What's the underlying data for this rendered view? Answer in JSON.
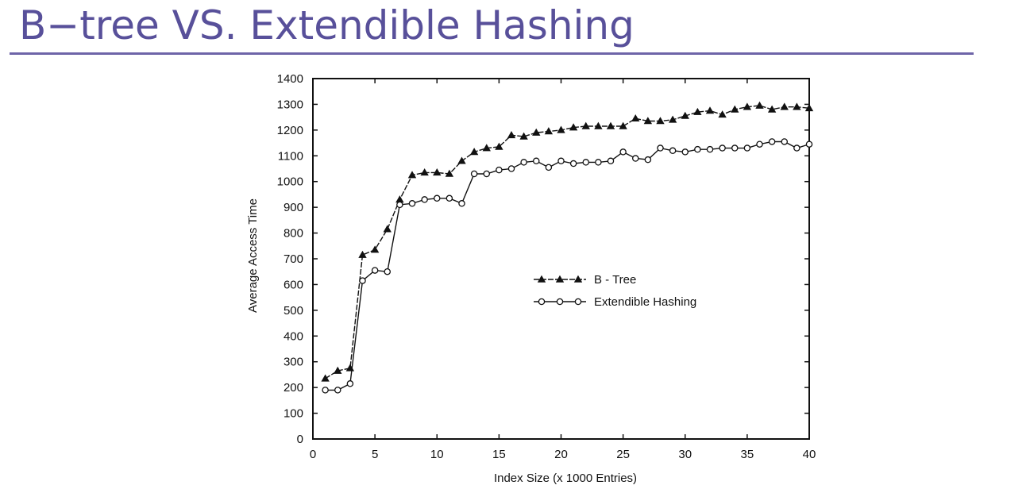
{
  "slide": {
    "title": "B−tree VS. Extendible Hashing"
  },
  "colors": {
    "title": "#58509a",
    "rule": "#6e64a8",
    "ink": "#111111"
  },
  "chart_data": {
    "type": "line",
    "xlabel": "Index Size (x 1000 Entries)",
    "ylabel": "Average Access Time",
    "xlim": [
      0,
      40
    ],
    "ylim": [
      0,
      1400
    ],
    "xticks": [
      0,
      5,
      10,
      15,
      20,
      25,
      30,
      35,
      40
    ],
    "yticks": [
      0,
      100,
      200,
      300,
      400,
      500,
      600,
      700,
      800,
      900,
      1000,
      1100,
      1200,
      1300,
      1400
    ],
    "grid": false,
    "legend_position": "center-right",
    "x": [
      1,
      2,
      3,
      4,
      5,
      6,
      7,
      8,
      9,
      10,
      11,
      12,
      13,
      14,
      15,
      16,
      17,
      18,
      19,
      20,
      21,
      22,
      23,
      24,
      25,
      26,
      27,
      28,
      29,
      30,
      31,
      32,
      33,
      34,
      35,
      36,
      37,
      38,
      39,
      40
    ],
    "series": [
      {
        "name": "B - Tree",
        "marker": "filled-triangle",
        "line": "dashed",
        "values": [
          235,
          265,
          275,
          715,
          735,
          815,
          930,
          1025,
          1035,
          1035,
          1030,
          1080,
          1115,
          1130,
          1135,
          1180,
          1175,
          1190,
          1195,
          1200,
          1210,
          1215,
          1215,
          1215,
          1215,
          1245,
          1235,
          1235,
          1240,
          1255,
          1270,
          1275,
          1260,
          1280,
          1290,
          1295,
          1280,
          1290,
          1290,
          1285
        ]
      },
      {
        "name": "Extendible Hashing",
        "marker": "open-circle",
        "line": "solid",
        "values": [
          190,
          190,
          215,
          615,
          655,
          650,
          910,
          915,
          930,
          935,
          935,
          915,
          1030,
          1030,
          1045,
          1050,
          1075,
          1080,
          1055,
          1080,
          1070,
          1075,
          1075,
          1080,
          1115,
          1090,
          1085,
          1130,
          1120,
          1115,
          1125,
          1125,
          1130,
          1130,
          1130,
          1145,
          1155,
          1155,
          1130,
          1145
        ]
      }
    ]
  }
}
